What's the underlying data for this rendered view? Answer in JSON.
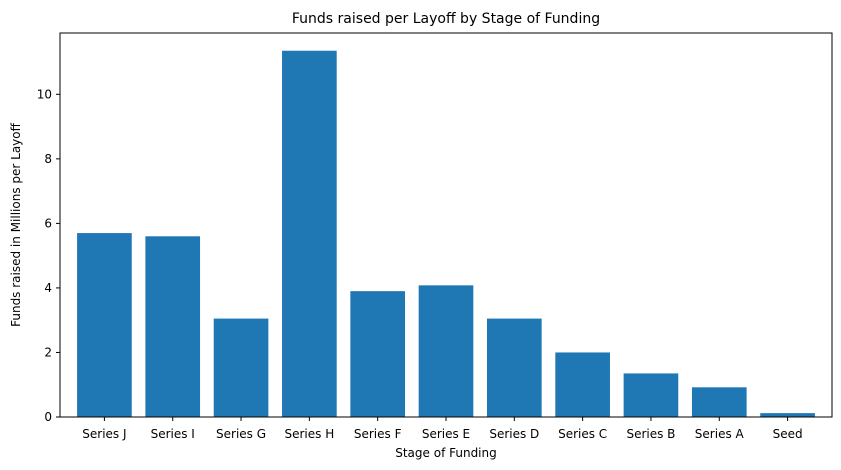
{
  "chart_data": {
    "type": "bar",
    "title": "Funds raised per Layoff by Stage of Funding",
    "xlabel": "Stage of Funding",
    "ylabel": "Funds raised in Millions per Layoff",
    "categories": [
      "Series J",
      "Series I",
      "Series G",
      "Series H",
      "Series F",
      "Series E",
      "Series D",
      "Series C",
      "Series B",
      "Series A",
      "Seed"
    ],
    "values": [
      5.7,
      5.6,
      3.05,
      11.35,
      3.9,
      4.08,
      3.05,
      2.0,
      1.35,
      0.92,
      0.12
    ],
    "ylim": [
      0,
      11.9
    ],
    "yticks": [
      0,
      2,
      4,
      6,
      8,
      10
    ],
    "grid": false,
    "bar_color": "#1f77b4"
  }
}
